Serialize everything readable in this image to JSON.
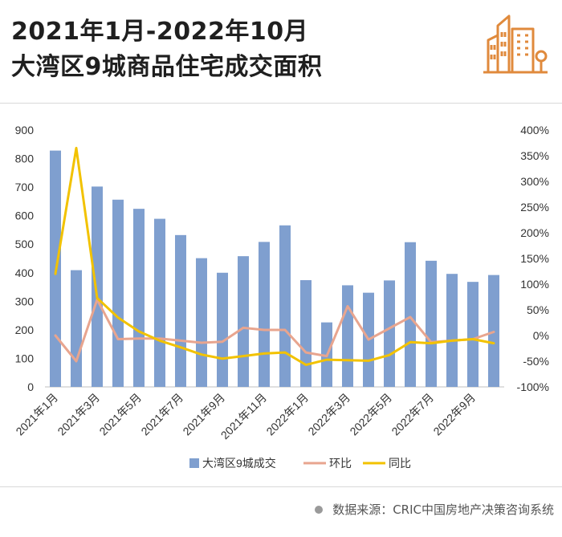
{
  "title": {
    "line1": "2021年1月-2022年10月",
    "line2": "大湾区9城商品住宅成交面积"
  },
  "logo_icon": "city-buildings-icon",
  "source": "数据来源：CRIC中国房地产决策咨询系统",
  "colors": {
    "bar": "#7f9fcf",
    "mom": "#e8a58f",
    "yoy": "#f2c200",
    "axis_text": "#333333",
    "brand_orange": "#e08a3c"
  },
  "chart_data": {
    "type": "bar",
    "title": "大湾区9城商品住宅成交面积",
    "categories": [
      "2021年1月",
      "2021年2月",
      "2021年3月",
      "2021年4月",
      "2021年5月",
      "2021年6月",
      "2021年7月",
      "2021年8月",
      "2021年9月",
      "2021年10月",
      "2021年11月",
      "2021年12月",
      "2022年1月",
      "2022年2月",
      "2022年3月",
      "2022年4月",
      "2022年5月",
      "2022年6月",
      "2022年7月",
      "2022年8月",
      "2022年9月",
      "2022年10月"
    ],
    "x_tick_labels": [
      "2021年1月",
      "2021年3月",
      "2021年5月",
      "2021年7月",
      "2021年9月",
      "2021年11月",
      "2022年1月",
      "2022年3月",
      "2022年5月",
      "2022年7月",
      "2022年9月"
    ],
    "x_tick_indices": [
      0,
      2,
      4,
      6,
      8,
      10,
      12,
      14,
      16,
      18,
      20
    ],
    "y_left": {
      "min": 0,
      "max": 900,
      "ticks": [
        "0",
        "100",
        "200",
        "300",
        "400",
        "500",
        "600",
        "700",
        "800",
        "900"
      ]
    },
    "y_right": {
      "min": -100,
      "max": 400,
      "ticks": [
        "-100%",
        "-50%",
        "0%",
        "50%",
        "100%",
        "150%",
        "200%",
        "250%",
        "300%",
        "350%",
        "400%"
      ]
    },
    "series": [
      {
        "name": "大湾区9城成交",
        "type": "bar",
        "axis": "left",
        "values": [
          828,
          409,
          702,
          656,
          624,
          589,
          532,
          451,
          400,
          458,
          508,
          566,
          374,
          226,
          356,
          330,
          373,
          507,
          442,
          396,
          368,
          392
        ]
      },
      {
        "name": "环比",
        "type": "line",
        "axis": "right",
        "values": [
          0,
          -50,
          70,
          -7,
          -6,
          -6,
          -10,
          -14,
          -12,
          15,
          11,
          11,
          -33,
          -40,
          57,
          -8,
          14,
          36,
          -13,
          -10,
          -7,
          7
        ]
      },
      {
        "name": "同比",
        "type": "line",
        "axis": "right",
        "values": [
          120,
          365,
          73,
          35,
          8,
          -10,
          -23,
          -37,
          -45,
          -40,
          -35,
          -33,
          -57,
          -47,
          -48,
          -49,
          -38,
          -13,
          -15,
          -10,
          -7,
          -15
        ]
      }
    ],
    "legend": [
      "大湾区9城成交",
      "环比",
      "同比"
    ],
    "legend_position": "bottom",
    "grid": false
  }
}
